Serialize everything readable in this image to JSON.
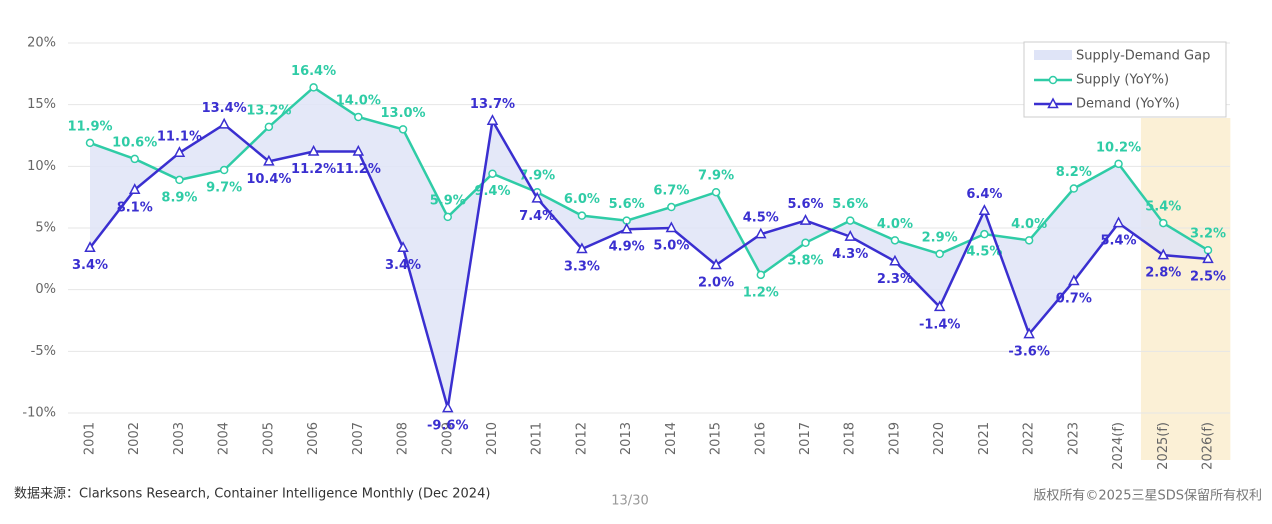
{
  "chart_data": {
    "type": "line",
    "categories": [
      "2001",
      "2002",
      "2003",
      "2004",
      "2005",
      "2006",
      "2007",
      "2008",
      "2009",
      "2010",
      "2011",
      "2012",
      "2013",
      "2014",
      "2015",
      "2016",
      "2017",
      "2018",
      "2019",
      "2020",
      "2021",
      "2022",
      "2023",
      "2024(f)",
      "2025(f)",
      "2026(f)"
    ],
    "series": [
      {
        "name": "Supply (YoY%)",
        "color": "#2fcca6",
        "marker": "circle",
        "values": [
          11.9,
          10.6,
          8.9,
          9.7,
          13.2,
          16.4,
          14.0,
          13.0,
          5.9,
          9.4,
          7.9,
          6.0,
          5.6,
          6.7,
          7.9,
          1.2,
          3.8,
          5.6,
          4.0,
          2.9,
          4.5,
          4.0,
          8.2,
          10.2,
          5.4,
          3.2
        ],
        "value_labels": [
          "11.9%",
          "10.6%",
          "8.9%",
          "9.7%",
          "13.2%",
          "16.4%",
          "14.0%",
          "13.0%",
          "5.9%",
          "9.4%",
          "7.9%",
          "6.0%",
          "5.6%",
          "6.7%",
          "7.9%",
          "1.2%",
          "3.8%",
          "5.6%",
          "4.0%",
          "2.9%",
          "4.5%",
          "4.0%",
          "8.2%",
          "10.2%",
          "5.4%",
          "3.2%"
        ]
      },
      {
        "name": "Demand (YoY%)",
        "color": "#3a2fd0",
        "marker": "triangle",
        "values": [
          3.4,
          8.1,
          11.1,
          13.4,
          10.4,
          11.2,
          11.2,
          3.4,
          -9.6,
          13.7,
          7.4,
          3.3,
          4.9,
          5.0,
          2.0,
          4.5,
          5.6,
          4.3,
          2.3,
          -1.4,
          6.4,
          -3.6,
          0.7,
          5.4,
          2.8,
          2.5
        ],
        "value_labels": [
          "3.4%",
          "8.1%",
          "11.1%",
          "13.4%",
          "10.4%",
          "11.2%",
          "11.2%",
          "3.4%",
          "-9.6%",
          "13.7%",
          "7.4%",
          "3.3%",
          "4.9%",
          "5.0%",
          "2.0%",
          "4.5%",
          "5.6%",
          "4.3%",
          "2.3%",
          "-1.4%",
          "6.4%",
          "-3.6%",
          "0.7%",
          "5.4%",
          "2.8%",
          "2.5%"
        ]
      }
    ],
    "gap": {
      "name": "Supply-Demand Gap",
      "color": "#dfe4f7"
    },
    "highlight_last": 2,
    "highlight_color": "#fbf0d6",
    "ylim": [
      -10,
      20
    ],
    "yticks": [
      {
        "value": -10,
        "label": "-10%"
      },
      {
        "value": -5,
        "label": "-5%"
      },
      {
        "value": 0,
        "label": "0%"
      },
      {
        "value": 5,
        "label": "5%"
      },
      {
        "value": 10,
        "label": "10%"
      },
      {
        "value": 15,
        "label": "15%"
      },
      {
        "value": 20,
        "label": "20%"
      }
    ],
    "grid": true,
    "legend": "upper right"
  },
  "footer": {
    "source": "数据来源：Clarksons Research, Container Intelligence Monthly (Dec 2024)",
    "page": "13/30",
    "copyright": "版权所有©2025三星SDS保留所有权利"
  }
}
